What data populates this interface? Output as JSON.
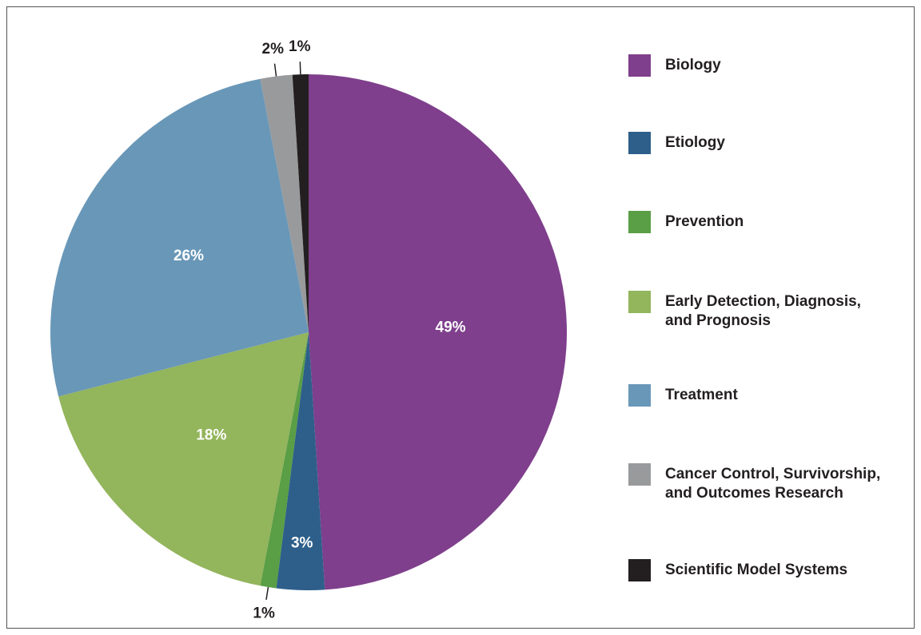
{
  "chart_data": {
    "type": "pie",
    "categories": [
      "Biology",
      "Etiology",
      "Prevention",
      "Early Detection, Diagnosis, and Prognosis",
      "Treatment",
      "Cancer Control, Survivorship, and Outcomes Research",
      "Scientific Model Systems"
    ],
    "values": [
      49,
      3,
      1,
      18,
      26,
      2,
      1
    ],
    "value_labels": [
      "49%",
      "3%",
      "1%",
      "18%",
      "26%",
      "2%",
      "1%"
    ],
    "colors": [
      "#7f3f8c",
      "#2e5f8a",
      "#5a9e45",
      "#93b55c",
      "#6997b8",
      "#999a9c",
      "#231f20"
    ],
    "start_angle": 0,
    "direction": "clockwise",
    "legend": "right"
  }
}
